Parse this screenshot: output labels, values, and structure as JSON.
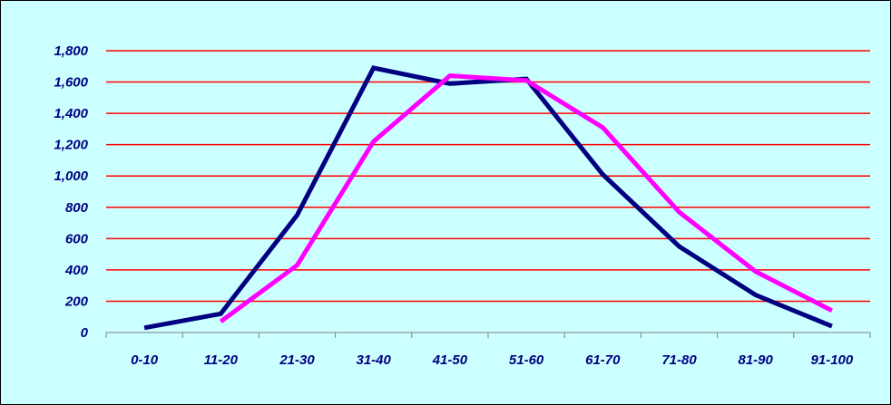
{
  "chart_data": {
    "type": "line",
    "categories": [
      "0-10",
      "11-20",
      "21-30",
      "31-40",
      "41-50",
      "51-60",
      "61-70",
      "71-80",
      "81-90",
      "91-100"
    ],
    "series": [
      {
        "color": "#000080",
        "values": [
          30,
          120,
          750,
          1690,
          1590,
          1620,
          1010,
          550,
          240,
          40
        ]
      },
      {
        "color": "#ff00ff",
        "values": [
          null,
          70,
          430,
          1220,
          1640,
          1610,
          1310,
          770,
          390,
          140
        ]
      }
    ],
    "y_ticks": [
      {
        "value": 0,
        "label": "0"
      },
      {
        "value": 200,
        "label": "200"
      },
      {
        "value": 400,
        "label": "400"
      },
      {
        "value": 600,
        "label": "600"
      },
      {
        "value": 800,
        "label": "800"
      },
      {
        "value": 1000,
        "label": "1,000"
      },
      {
        "value": 1200,
        "label": "1,200"
      },
      {
        "value": 1400,
        "label": "1,400"
      },
      {
        "value": 1600,
        "label": "1,600"
      },
      {
        "value": 1800,
        "label": "1,800"
      }
    ],
    "ylim": [
      0,
      1800
    ],
    "grid": true,
    "grid_color": "#ff0000",
    "background_color": "#ccffff",
    "legend": "none"
  }
}
